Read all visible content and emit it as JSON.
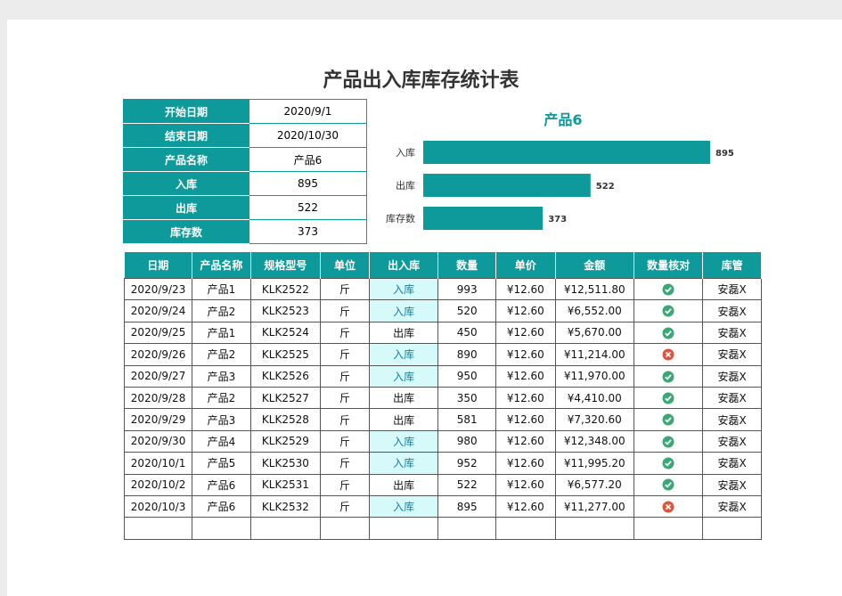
{
  "title": "产品出入库库存统计表",
  "info": [
    [
      "开始日期",
      "2020/9/1"
    ],
    [
      "结束日期",
      "2020/10/30"
    ],
    [
      "产品名称",
      "产品6"
    ],
    [
      "入库",
      "895"
    ],
    [
      "出库",
      "522"
    ],
    [
      "库存数",
      "373"
    ]
  ],
  "chart": {
    "type": "bar",
    "title": "产品6",
    "categories": [
      "入库",
      "出库",
      "库存数"
    ],
    "values": [
      895,
      522,
      373
    ],
    "color": "#0e9a9a"
  },
  "table": {
    "headers": [
      "日期",
      "产品名称",
      "规格型号",
      "单位",
      "出入库",
      "数量",
      "单价",
      "金额",
      "数量核对",
      "库管"
    ],
    "rows": [
      [
        "2020/9/23",
        "产品1",
        "KLK2522",
        "斤",
        "入库",
        "993",
        "¥12.60",
        "¥12,511.80",
        "安磊X"
      ],
      [
        "2020/9/24",
        "产品2",
        "KLK2523",
        "斤",
        "入库",
        "520",
        "¥12.60",
        "¥6,552.00",
        "安磊X"
      ],
      [
        "2020/9/25",
        "产品1",
        "KLK2524",
        "斤",
        "出库",
        "450",
        "¥12.60",
        "¥5,670.00",
        "安磊X"
      ],
      [
        "2020/9/26",
        "产品2",
        "KLK2525",
        "斤",
        "入库",
        "890",
        "¥12.60",
        "¥11,214.00",
        "安磊X"
      ],
      [
        "2020/9/27",
        "产品3",
        "KLK2526",
        "斤",
        "入库",
        "950",
        "¥12.60",
        "¥11,970.00",
        "安磊X"
      ],
      [
        "2020/9/28",
        "产品2",
        "KLK2527",
        "斤",
        "出库",
        "350",
        "¥12.60",
        "¥4,410.00",
        "安磊X"
      ],
      [
        "2020/9/29",
        "产品3",
        "KLK2528",
        "斤",
        "出库",
        "581",
        "¥12.60",
        "¥7,320.60",
        "安磊X"
      ],
      [
        "2020/9/30",
        "产品4",
        "KLK2529",
        "斤",
        "入库",
        "980",
        "¥12.60",
        "¥12,348.00",
        "安磊X"
      ],
      [
        "2020/10/1",
        "产品5",
        "KLK2530",
        "斤",
        "入库",
        "952",
        "¥12.60",
        "¥11,995.20",
        "安磊X"
      ],
      [
        "2020/10/2",
        "产品6",
        "KLK2531",
        "斤",
        "出库",
        "522",
        "¥12.60",
        "¥6,577.20",
        "安磊X"
      ],
      [
        "2020/10/3",
        "产品6",
        "KLK2532",
        "斤",
        "入库",
        "895",
        "¥12.60",
        "¥11,277.00",
        "安磊X"
      ]
    ],
    "checks": [
      true,
      true,
      true,
      false,
      true,
      true,
      true,
      true,
      true,
      true,
      false
    ]
  }
}
